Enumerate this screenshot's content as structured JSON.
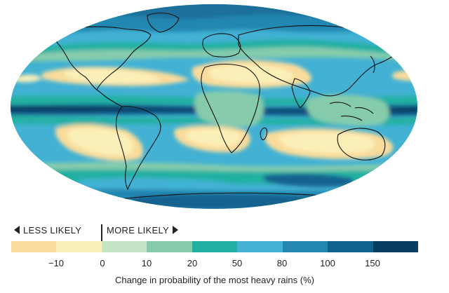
{
  "legend": {
    "less_label": "LESS LIKELY",
    "more_label": "MORE LIKELY",
    "ticks": [
      "−10",
      "0",
      "10",
      "20",
      "50",
      "80",
      "100",
      "150"
    ],
    "caption": "Change in probability of the most heavy rains (%)",
    "colors": [
      "#f9dc9b",
      "#fbefb8",
      "#c4e6c6",
      "#86ccac",
      "#22b0a2",
      "#43b2d4",
      "#2387b1",
      "#12628f",
      "#0a3d63"
    ]
  },
  "map": {
    "ocean_base": "#42b1d3",
    "land_outline": "#111111"
  }
}
